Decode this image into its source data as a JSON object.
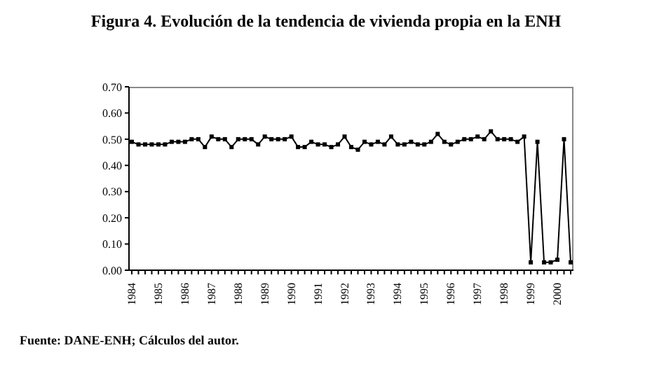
{
  "chart_data": {
    "type": "line",
    "title": "Figura 4. Evolución de la tendencia de vivienda propia en la ENH",
    "annotations": [
      "Fuente: DANE-ENH; Cálculos del autor."
    ],
    "categories": [
      "1984",
      null,
      null,
      null,
      "1985",
      null,
      null,
      null,
      "1986",
      null,
      null,
      null,
      "1987",
      null,
      null,
      null,
      "1988",
      null,
      null,
      null,
      "1989",
      null,
      null,
      null,
      "1990",
      null,
      null,
      null,
      "1991",
      null,
      null,
      null,
      "1992",
      null,
      null,
      null,
      "1993",
      null,
      null,
      null,
      "1994",
      null,
      null,
      null,
      "1995",
      null,
      null,
      null,
      "1996",
      null,
      null,
      null,
      "1997",
      null,
      null,
      null,
      "1998",
      null,
      null,
      null,
      "1999",
      null,
      null,
      null,
      "2000",
      null,
      null
    ],
    "series": [
      {
        "color": "#000000",
        "values": [
          0.49,
          0.48,
          0.48,
          0.48,
          0.48,
          0.48,
          0.49,
          0.49,
          0.49,
          0.5,
          0.5,
          0.47,
          0.51,
          0.5,
          0.5,
          0.47,
          0.5,
          0.5,
          0.5,
          0.48,
          0.51,
          0.5,
          0.5,
          0.5,
          0.51,
          0.47,
          0.47,
          0.49,
          0.48,
          0.48,
          0.47,
          0.48,
          0.51,
          0.47,
          0.46,
          0.49,
          0.48,
          0.49,
          0.48,
          0.51,
          0.48,
          0.48,
          0.49,
          0.48,
          0.48,
          0.49,
          0.52,
          0.49,
          0.48,
          0.49,
          0.5,
          0.5,
          0.51,
          0.5,
          0.53,
          0.5,
          0.5,
          0.5,
          0.49,
          0.51,
          0.03,
          0.49,
          0.03,
          0.03,
          0.04,
          0.5,
          0.03
        ]
      }
    ],
    "ylim": [
      0,
      0.7
    ],
    "yticks": [
      {
        "value": 0,
        "label": "0.00"
      },
      {
        "value": 0.1,
        "label": "0.10"
      },
      {
        "value": 0.2,
        "label": "0.20"
      },
      {
        "value": 0.3,
        "label": "0.30"
      },
      {
        "value": 0.4,
        "label": "0.40"
      },
      {
        "value": 0.5,
        "label": "0.50"
      },
      {
        "value": 0.6,
        "label": "0.60"
      },
      {
        "value": 0.7,
        "label": "0.70"
      }
    ],
    "marker": "square",
    "line_style": "solid",
    "legend": false,
    "grid": false
  }
}
